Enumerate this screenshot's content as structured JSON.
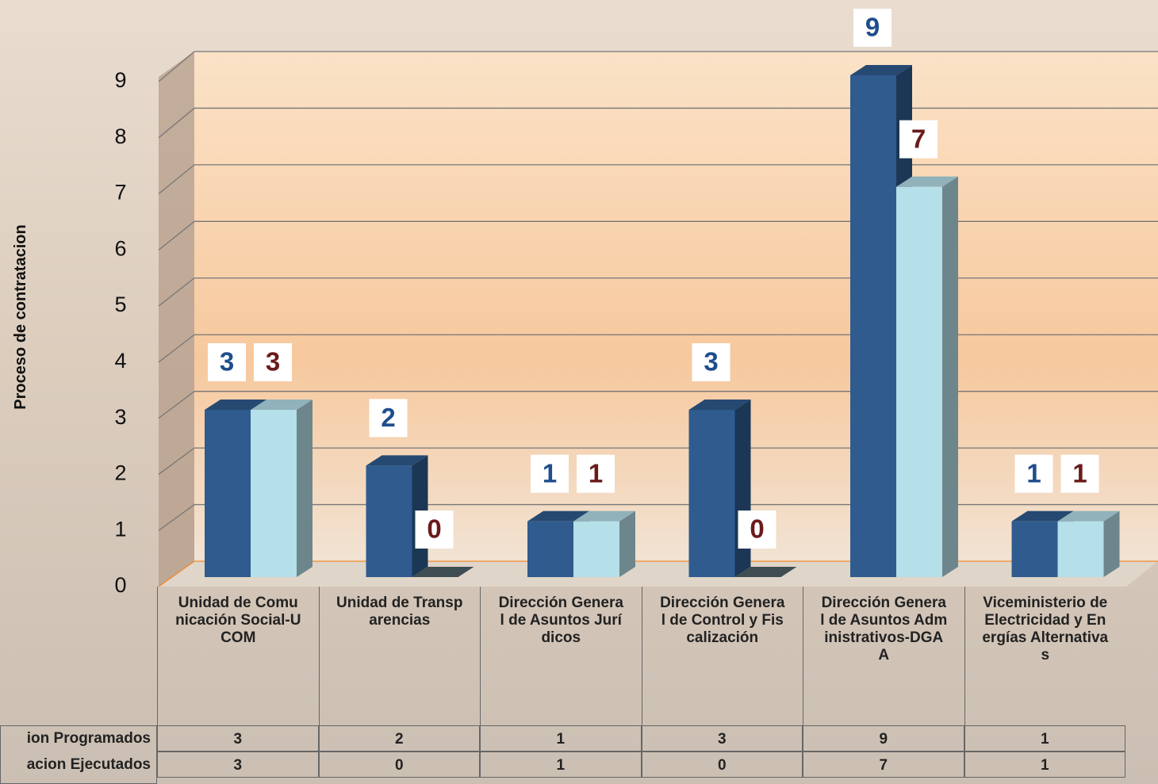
{
  "chart_data": {
    "type": "bar3d",
    "y_axis_label": "Proceso de contratacion",
    "categories": [
      "Unidad de Comunicación Social-UCOM",
      "Unidad de Transparencias",
      "Dirección General de Asuntos Jurídicos",
      "Dirección General de Control y Fiscalización",
      "Dirección General de Asuntos Administrativos-DGAA",
      "Viceministerio de Electricidad y Energías Alternativas"
    ],
    "series": [
      {
        "name": "ion Programados",
        "color": "#2f5b8f",
        "label_color": "#1f4e8c",
        "values": [
          3,
          2,
          1,
          3,
          9,
          1
        ]
      },
      {
        "name": "acion Ejecutados",
        "color": "#b5dfe9",
        "label_color": "#6b1a1a",
        "values": [
          3,
          0,
          1,
          0,
          7,
          1
        ]
      }
    ],
    "ylim": [
      0,
      9
    ],
    "yticks": [
      0,
      1,
      2,
      3,
      4,
      5,
      6,
      7,
      8,
      9
    ],
    "grid": true,
    "data_table": true
  }
}
